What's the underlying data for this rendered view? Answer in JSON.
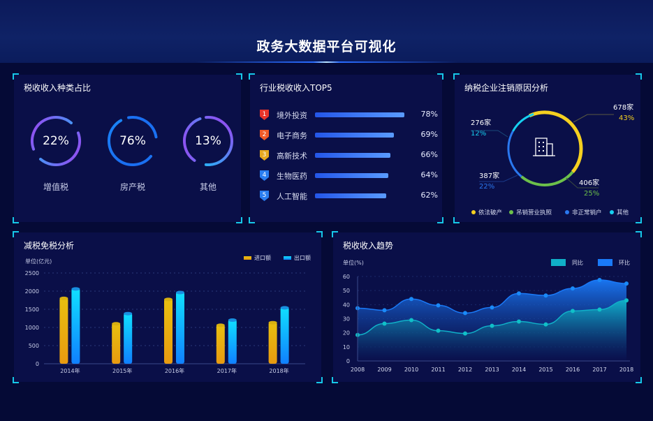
{
  "title": "政务大数据平台可视化",
  "colors": {
    "background": "#050a36",
    "panel": "#0a0f48",
    "corner": "#16c8e8",
    "yellow": "#f5d020",
    "green": "#6cc04a",
    "blue": "#2a78f0",
    "cyan": "#16d0f0"
  },
  "tax_types": {
    "title": "税收收入种类占比",
    "items": [
      {
        "label": "增值税",
        "value": "22%"
      },
      {
        "label": "房产税",
        "value": "76%"
      },
      {
        "label": "其他",
        "value": "13%"
      }
    ]
  },
  "top5": {
    "title": "行业税收收入TOP5",
    "items": [
      {
        "rank": "1",
        "name": "境外投资",
        "value": "78%",
        "pct": 78,
        "color": "#e8342a"
      },
      {
        "rank": "2",
        "name": "电子商务",
        "value": "69%",
        "pct": 69,
        "color": "#f05a28"
      },
      {
        "rank": "3",
        "name": "高新技术",
        "value": "66%",
        "pct": 66,
        "color": "#e8a820"
      },
      {
        "rank": "4",
        "name": "生物医药",
        "value": "64%",
        "pct": 64,
        "color": "#2a7ef0"
      },
      {
        "rank": "5",
        "name": "人工智能",
        "value": "62%",
        "pct": 62,
        "color": "#2a7ef0"
      }
    ]
  },
  "cancel": {
    "title": "纳税企业注销原因分析",
    "icon": "building-icon",
    "segments": [
      {
        "name": "依法破产",
        "count": "678家",
        "pct": "43%",
        "value": 43,
        "color": "#f5d020"
      },
      {
        "name": "吊销营业执照",
        "count": "406家",
        "pct": "25%",
        "value": 25,
        "color": "#6cc04a"
      },
      {
        "name": "非正常销户",
        "count": "387家",
        "pct": "22%",
        "value": 22,
        "color": "#2a78f0"
      },
      {
        "name": "其他",
        "count": "276家",
        "pct": "12%",
        "value": 12,
        "color": "#16d0f0"
      }
    ]
  },
  "chart_data": [
    {
      "type": "bar",
      "title": "减税免税分析",
      "ylabel": "单位(亿元)",
      "ylim": [
        0,
        2500
      ],
      "yticks": [
        "0",
        "500",
        "1000",
        "1500",
        "2000",
        "2500"
      ],
      "categories": [
        "2014年",
        "2015年",
        "2016年",
        "2017年",
        "2018年"
      ],
      "legend": "top-right",
      "grid": true,
      "series": [
        {
          "name": "进口额",
          "color": "#f0b010",
          "values": [
            1820,
            1120,
            1790,
            1080,
            1150
          ]
        },
        {
          "name": "出口额",
          "color": "#10c8ff",
          "values": [
            2080,
            1400,
            1980,
            1220,
            1560
          ]
        }
      ]
    },
    {
      "type": "area",
      "title": "税收收入趋势",
      "ylabel": "单位(%)",
      "ylim": [
        0,
        60
      ],
      "yticks": [
        "0",
        "10",
        "20",
        "30",
        "40",
        "50",
        "60"
      ],
      "categories": [
        "2008",
        "2009",
        "2010",
        "2011",
        "2012",
        "2013",
        "2014",
        "2015",
        "2016",
        "2017",
        "2018"
      ],
      "legend": "top-right",
      "grid": true,
      "series": [
        {
          "name": "同比",
          "color": "#10b0c8",
          "values": [
            18.5,
            26.5,
            29,
            21.5,
            19.5,
            25,
            28,
            26,
            35.5,
            36.5,
            43
          ]
        },
        {
          "name": "环比",
          "color": "#1a7af8",
          "values": [
            37.5,
            36,
            44,
            39.5,
            34,
            38,
            48,
            46.5,
            51.5,
            57.5,
            55
          ]
        }
      ]
    }
  ]
}
